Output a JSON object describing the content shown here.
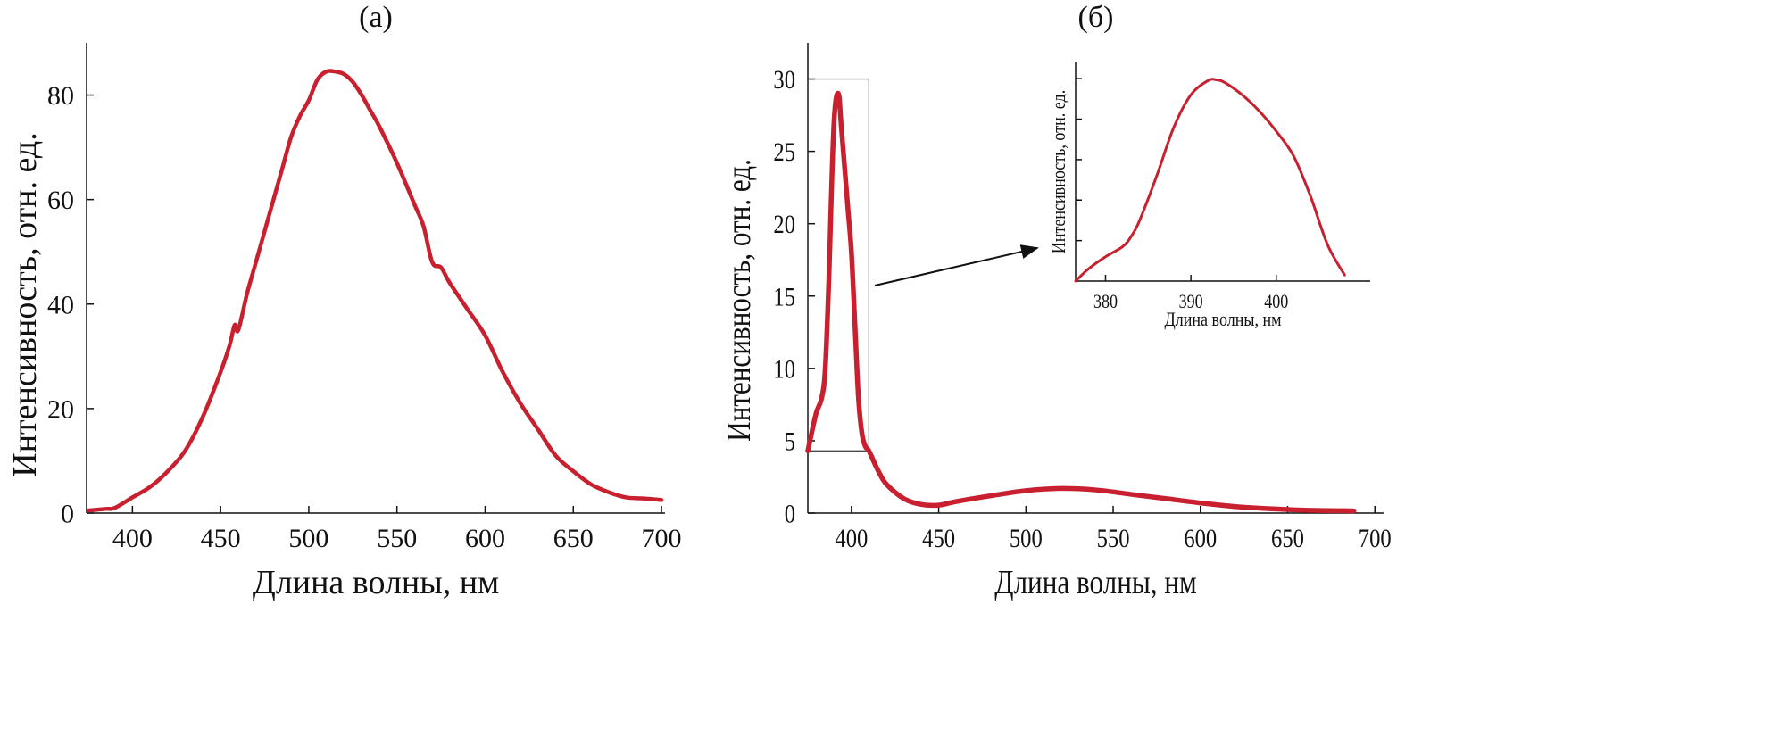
{
  "line_color": "#c8202f",
  "chart_data": [
    {
      "type": "line",
      "title": "(а)",
      "xlabel": "Длина волны, нм",
      "ylabel": "Интенсивность, отн. ед.",
      "xlim": [
        374,
        702
      ],
      "ylim": [
        0,
        90
      ],
      "xticks": [
        400,
        450,
        500,
        550,
        600,
        650,
        700
      ],
      "yticks": [
        0,
        20,
        40,
        60,
        80
      ],
      "series": [
        {
          "name": "spectrum",
          "x": [
            375,
            385,
            390,
            400,
            410,
            420,
            430,
            440,
            450,
            455,
            458,
            460,
            465,
            470,
            475,
            480,
            485,
            490,
            495,
            500,
            505,
            510,
            515,
            520,
            525,
            530,
            535,
            540,
            550,
            560,
            565,
            570,
            575,
            580,
            590,
            600,
            610,
            620,
            630,
            640,
            650,
            660,
            670,
            680,
            690,
            700
          ],
          "y": [
            0.5,
            0.8,
            1,
            3,
            5,
            8,
            12,
            18.5,
            27,
            32,
            36,
            35,
            42,
            48,
            54,
            60,
            66,
            72,
            76,
            79,
            83,
            84.5,
            84.5,
            84,
            82.5,
            80,
            77,
            74,
            67,
            59,
            55,
            48,
            47,
            44,
            39,
            34,
            27,
            21,
            16,
            11,
            8,
            5.5,
            4,
            3,
            2.8,
            2.5
          ]
        }
      ]
    },
    {
      "type": "line",
      "title": "(б)",
      "xlabel": "Длина волны, нм",
      "ylabel": "Интенсивность, отн. ед.",
      "xlim": [
        375,
        705
      ],
      "ylim": [
        0,
        32.5
      ],
      "xticks": [
        400,
        450,
        500,
        550,
        600,
        650,
        700
      ],
      "yticks": [
        0,
        5,
        10,
        15,
        20,
        25,
        30
      ],
      "zoom_box": {
        "x": [
          375,
          410
        ],
        "y": [
          4.3,
          30
        ]
      },
      "series": [
        {
          "name": "spectrum",
          "x": [
            375,
            378,
            380,
            383,
            385,
            387,
            388,
            389,
            390,
            391,
            392,
            393,
            394,
            396,
            398,
            400,
            402,
            404,
            406,
            408,
            410,
            415,
            420,
            430,
            440,
            450,
            460,
            480,
            500,
            520,
            540,
            560,
            580,
            600,
            620,
            640,
            660,
            688
          ],
          "y": [
            4.3,
            6,
            7,
            8,
            10,
            16,
            20,
            24,
            27,
            28.5,
            29,
            28.7,
            27,
            24,
            21,
            18,
            13,
            8,
            5.5,
            4.6,
            4.3,
            3,
            2,
            1,
            0.6,
            0.55,
            0.8,
            1.2,
            1.55,
            1.7,
            1.6,
            1.3,
            1.0,
            0.7,
            0.45,
            0.3,
            0.2,
            0.15
          ]
        }
      ]
    },
    {
      "type": "line",
      "title": "",
      "xlabel": "Длина волны, нм",
      "ylabel": "Интенсивность, отн. ед.",
      "xlim": [
        376.5,
        411
      ],
      "ylim": [
        0,
        5.4
      ],
      "xticks": [
        380,
        390,
        400
      ],
      "yticks": [
        1,
        2,
        3,
        4,
        5
      ],
      "ytick_labels_shown": false,
      "series": [
        {
          "name": "spectrum-zoom",
          "x": [
            376.5,
            378,
            380,
            382,
            383,
            384,
            386,
            388,
            390,
            392,
            393,
            394,
            396,
            398,
            400,
            402,
            404,
            406,
            408
          ],
          "y": [
            0,
            0.3,
            0.6,
            0.85,
            1.1,
            1.5,
            2.6,
            3.8,
            4.6,
            4.95,
            4.97,
            4.9,
            4.6,
            4.2,
            3.7,
            3.1,
            2.1,
            0.9,
            0.15
          ]
        }
      ]
    }
  ]
}
